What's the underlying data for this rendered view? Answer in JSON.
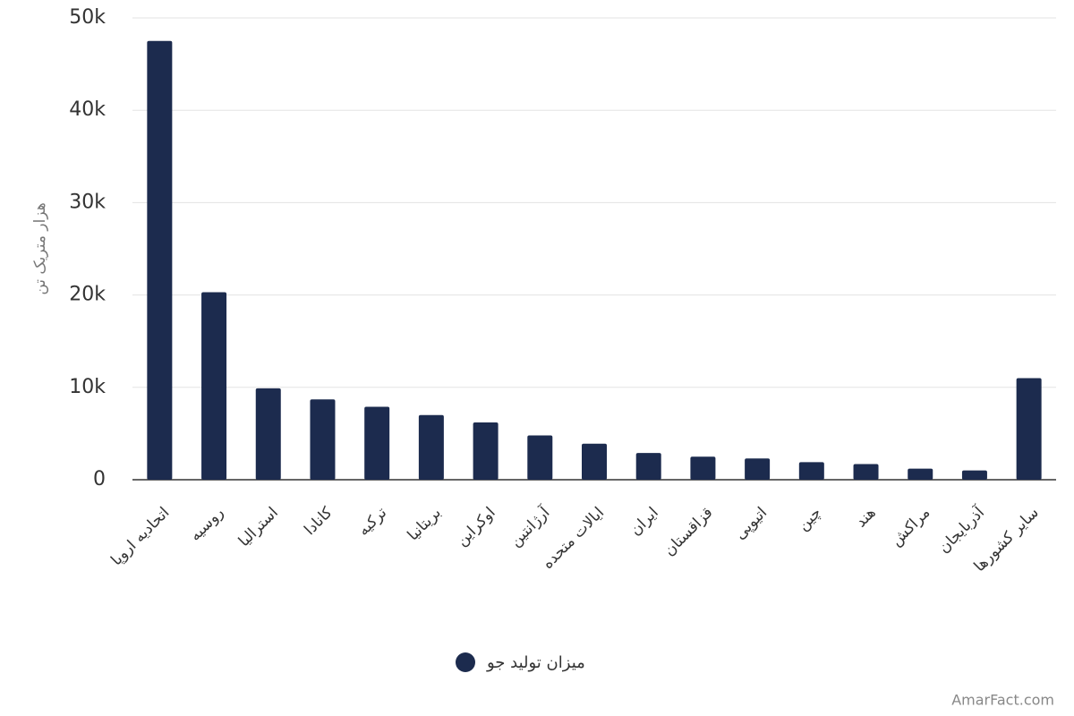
{
  "chart_data": {
    "type": "bar",
    "y_label": "هزار متریک تن",
    "categories": [
      "اتحادیه اروپا",
      "روسیه",
      "استرالیا",
      "کانادا",
      "ترکیه",
      "بریتانیا",
      "اوکراین",
      "آرژانتین",
      "ایالات متحده",
      "ایران",
      "قزاقستان",
      "اتیوپی",
      "چین",
      "هند",
      "مراکش",
      "آذربایجان",
      "سایر کشورها"
    ],
    "series": [
      {
        "name": "میزان تولید جو",
        "color": "#1c2b4e",
        "values": [
          47500,
          20300,
          9900,
          8700,
          7900,
          7000,
          6200,
          4800,
          3900,
          2900,
          2500,
          2300,
          1900,
          1700,
          1200,
          1000,
          11000
        ]
      }
    ],
    "ylim": [
      0,
      50000
    ],
    "yticks": [
      0,
      {
        "value": 10000,
        "label": "10k"
      },
      {
        "value": 20000,
        "label": "20k"
      },
      {
        "value": 30000,
        "label": "30k"
      },
      {
        "value": 40000,
        "label": "40k"
      },
      {
        "value": 50000,
        "label": "50k"
      }
    ],
    "grid": true,
    "legend": "bottom",
    "watermark": "AmarFact.com"
  }
}
